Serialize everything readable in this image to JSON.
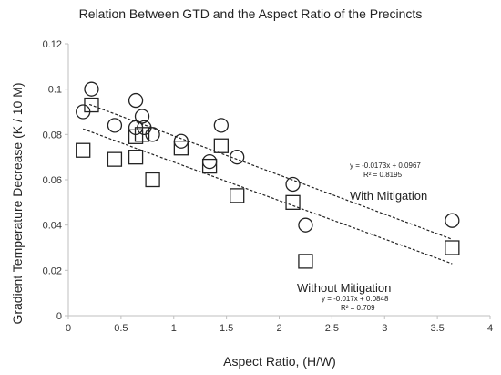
{
  "chart_data": {
    "type": "scatter",
    "title": "Relation Between GTD and the Aspect Ratio of the Precincts",
    "xlabel": "Aspect Ratio, (H/W)",
    "ylabel": "Gradient Temperature Decrease  (K / 10 M)",
    "xlim": [
      0,
      4
    ],
    "ylim": [
      0,
      0.12
    ],
    "x_ticks": [
      "0",
      "0.5",
      "1",
      "1.5",
      "2",
      "2.5",
      "3",
      "3.5",
      "4"
    ],
    "y_ticks": [
      "0",
      "0.02",
      "0.04",
      "0.06",
      "0.08",
      "0.1",
      "0.12"
    ],
    "grid": false,
    "series": [
      {
        "name": "With Mitigation",
        "marker": "circle",
        "color": "#222222",
        "points": [
          [
            0.14,
            0.09
          ],
          [
            0.22,
            0.1
          ],
          [
            0.44,
            0.084
          ],
          [
            0.64,
            0.095
          ],
          [
            0.64,
            0.083
          ],
          [
            0.7,
            0.088
          ],
          [
            0.72,
            0.083
          ],
          [
            0.8,
            0.08
          ],
          [
            1.07,
            0.077
          ],
          [
            1.34,
            0.068
          ],
          [
            1.45,
            0.084
          ],
          [
            1.6,
            0.07
          ],
          [
            2.13,
            0.058
          ],
          [
            2.25,
            0.04
          ],
          [
            3.64,
            0.042
          ]
        ],
        "trendline": {
          "slope": -0.0173,
          "intercept": 0.0967,
          "x_range": [
            0.2,
            3.64
          ]
        },
        "equation": "y = -0.0173x + 0.0967",
        "r2": "R² = 0.8195"
      },
      {
        "name": "Without Mitigation",
        "marker": "square",
        "color": "#222222",
        "points": [
          [
            0.14,
            0.073
          ],
          [
            0.22,
            0.093
          ],
          [
            0.44,
            0.069
          ],
          [
            0.64,
            0.07
          ],
          [
            0.64,
            0.079
          ],
          [
            0.7,
            0.08
          ],
          [
            0.8,
            0.06
          ],
          [
            1.07,
            0.074
          ],
          [
            1.34,
            0.066
          ],
          [
            1.45,
            0.075
          ],
          [
            1.6,
            0.053
          ],
          [
            2.13,
            0.05
          ],
          [
            2.25,
            0.024
          ],
          [
            3.64,
            0.03
          ]
        ],
        "trendline": {
          "slope": -0.017,
          "intercept": 0.0848,
          "x_range": [
            0.14,
            3.64
          ]
        },
        "equation": "y = -0.017x + 0.0848",
        "r2": "R² = 0.709"
      }
    ]
  }
}
